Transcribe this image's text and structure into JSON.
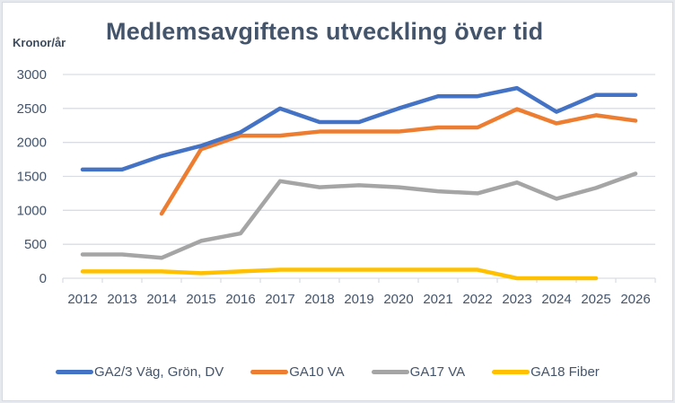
{
  "chart_data": {
    "type": "line",
    "title": "Medlemsavgiftens utveckling över tid",
    "xlabel": "",
    "ylabel": "Kronor/år",
    "ylim": [
      0,
      3000
    ],
    "yticks": [
      "0",
      "500",
      "1000",
      "1500",
      "2000",
      "2500",
      "3000"
    ],
    "ytick_values": [
      0,
      500,
      1000,
      1500,
      2000,
      2500,
      3000
    ],
    "grid": true,
    "legend_position": "bottom",
    "categories": [
      "2012",
      "2013",
      "2014",
      "2015",
      "2016",
      "2017",
      "2018",
      "2019",
      "2020",
      "2021",
      "2022",
      "2023",
      "2024",
      "2025",
      "2026"
    ],
    "series": [
      {
        "name": "GA2/3 Väg, Grön, DV",
        "color": "#4472c4",
        "values": [
          1600,
          1600,
          1800,
          1950,
          2150,
          2500,
          2300,
          2300,
          2500,
          2680,
          2680,
          2800,
          2450,
          2700,
          2700
        ]
      },
      {
        "name": "GA10 VA",
        "color": "#ed7d31",
        "values": [
          null,
          null,
          950,
          1900,
          2100,
          2100,
          2160,
          2160,
          2160,
          2220,
          2220,
          2490,
          2280,
          2400,
          2320
        ]
      },
      {
        "name": "GA17 VA",
        "color": "#a5a5a5",
        "values": [
          350,
          350,
          300,
          550,
          660,
          1430,
          1340,
          1370,
          1340,
          1280,
          1250,
          1410,
          1170,
          1330,
          1540
        ]
      },
      {
        "name": "GA18 Fiber",
        "color": "#ffc000",
        "values": [
          100,
          100,
          100,
          75,
          100,
          125,
          125,
          125,
          125,
          125,
          125,
          0,
          0,
          0,
          null
        ]
      }
    ]
  }
}
